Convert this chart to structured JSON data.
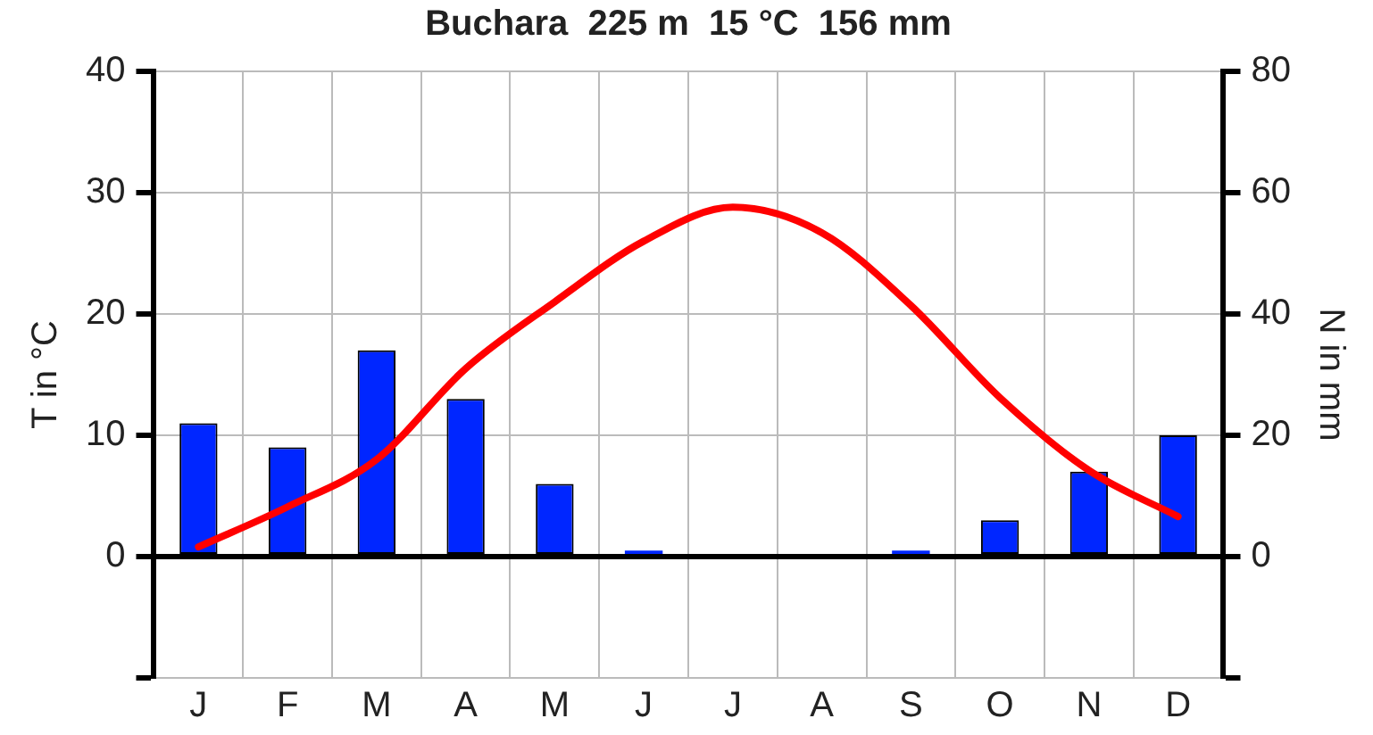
{
  "chart_data": {
    "type": "bar",
    "title": "Buchara  225 m  15 °C  156 mm",
    "ylabel": "T in °C",
    "y2label": "N in mm",
    "categories": [
      "J",
      "F",
      "M",
      "A",
      "M",
      "J",
      "J",
      "A",
      "S",
      "O",
      "N",
      "D"
    ],
    "series": [
      {
        "type": "line",
        "axis": "y",
        "color": "#ff0000",
        "values": [
          0.8,
          4.1,
          8,
          15.5,
          21,
          26,
          28.8,
          26.7,
          20.7,
          13.1,
          7.1,
          3.3
        ]
      },
      {
        "axis": "y2",
        "color": "#0026ff",
        "values": [
          22,
          18,
          34,
          26,
          12,
          1,
          0,
          0,
          1,
          6,
          14,
          20
        ]
      }
    ],
    "ylim": [
      -10,
      40
    ],
    "yticks": [
      {
        "value": -10,
        "label": null
      },
      0,
      10,
      20,
      30,
      40
    ],
    "y2lim": [
      -20,
      80
    ],
    "y2ticks": [
      {
        "value": -20,
        "label": null
      },
      0,
      20,
      40,
      60,
      80
    ],
    "grid": true,
    "legend": false,
    "marker": "none",
    "line_style": "solid"
  }
}
